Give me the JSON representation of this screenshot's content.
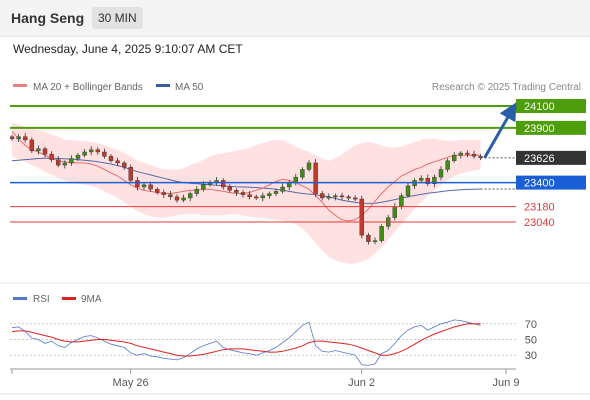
{
  "header": {
    "title": "Hang Seng",
    "interval": "30 MIN"
  },
  "timestamp": "Wednesday, June 4, 2025 9:10:07 AM CET",
  "copyright": "Research © 2025 Trading Central",
  "colors": {
    "resistance": "#4d9e0a",
    "current": "#333333",
    "pivot": "#1a5fd6",
    "support": "#e23b3b",
    "bollinger": "#ffd9d9",
    "ma20": "#e66d6d",
    "ma50": "#5569a8",
    "candle_up": "#3f8c17",
    "candle_down": "#c0392b",
    "rsi": "#5577cc",
    "rsi_ma": "#dd2222",
    "arrow": "#2a5ea8"
  },
  "chart_data": {
    "type": "candlestick",
    "legend": [
      {
        "name": "MA 20 + Bollinger Bands",
        "color": "#f08080"
      },
      {
        "name": "MA 50",
        "color": "#3a5f9e"
      }
    ],
    "levels": [
      {
        "value": 24100,
        "label": "24100",
        "kind": "resistance"
      },
      {
        "value": 23900,
        "label": "23900",
        "kind": "resistance"
      },
      {
        "value": 23626,
        "label": "23626",
        "kind": "current"
      },
      {
        "value": 23400,
        "label": "23400",
        "kind": "pivot"
      },
      {
        "value": 23180,
        "label": "23180",
        "kind": "support"
      },
      {
        "value": 23040,
        "label": "23040",
        "kind": "support"
      }
    ],
    "close": [
      23800,
      23820,
      23790,
      23690,
      23710,
      23660,
      23610,
      23560,
      23580,
      23620,
      23650,
      23680,
      23700,
      23680,
      23640,
      23600,
      23580,
      23540,
      23420,
      23360,
      23380,
      23340,
      23310,
      23290,
      23270,
      23240,
      23260,
      23300,
      23340,
      23380,
      23400,
      23420,
      23360,
      23330,
      23310,
      23290,
      23270,
      23260,
      23280,
      23300,
      23320,
      23360,
      23400,
      23450,
      23520,
      23580,
      23300,
      23260,
      23270,
      23280,
      23270,
      23260,
      23250,
      22920,
      22860,
      22870,
      23000,
      23080,
      23180,
      23280,
      23370,
      23420,
      23440,
      23390,
      23450,
      23520,
      23600,
      23650,
      23670,
      23660,
      23640,
      23626
    ],
    "ma20": [
      23870,
      23800,
      23740,
      23700,
      23680,
      23650,
      23620,
      23600,
      23590,
      23580,
      23580,
      23580,
      23570,
      23550,
      23520,
      23490,
      23460,
      23420,
      23380,
      23350,
      23330,
      23320,
      23310,
      23300,
      23300,
      23310,
      23320,
      23330,
      23330,
      23340,
      23340,
      23330,
      23320,
      23310,
      23300,
      23300,
      23310,
      23330,
      23350,
      23380,
      23410,
      23430,
      23420,
      23400,
      23370,
      23340,
      23280,
      23220,
      23150,
      23100,
      23060,
      23050,
      23060,
      23100,
      23160,
      23230,
      23300,
      23360,
      23410,
      23460,
      23490,
      23520,
      23540,
      23570,
      23590,
      23610,
      23630,
      23650,
      23650,
      23650,
      23650,
      23650
    ],
    "bb_upper": [
      23950,
      23930,
      23910,
      23900,
      23880,
      23860,
      23840,
      23820,
      23790,
      23790,
      23780,
      23780,
      23770,
      23760,
      23740,
      23720,
      23700,
      23670,
      23640,
      23600,
      23580,
      23560,
      23540,
      23520,
      23520,
      23520,
      23530,
      23560,
      23580,
      23610,
      23640,
      23660,
      23670,
      23680,
      23690,
      23700,
      23720,
      23740,
      23760,
      23780,
      23790,
      23790,
      23760,
      23730,
      23700,
      23680,
      23650,
      23620,
      23600,
      23620,
      23660,
      23700,
      23740,
      23760,
      23770,
      23760,
      23740,
      23720,
      23720,
      23730,
      23750,
      23770,
      23790,
      23800,
      23800,
      23790,
      23780,
      23780,
      23790,
      23790,
      23790,
      23790
    ],
    "bb_lower": [
      23640,
      23610,
      23590,
      23560,
      23530,
      23500,
      23470,
      23440,
      23420,
      23400,
      23390,
      23380,
      23370,
      23350,
      23320,
      23290,
      23260,
      23220,
      23180,
      23140,
      23110,
      23090,
      23080,
      23080,
      23090,
      23100,
      23110,
      23110,
      23110,
      23100,
      23100,
      23100,
      23100,
      23110,
      23110,
      23100,
      23090,
      23080,
      23080,
      23070,
      23060,
      23050,
      23040,
      23020,
      22980,
      22920,
      22850,
      22780,
      22720,
      22690,
      22670,
      22660,
      22660,
      22680,
      22700,
      22750,
      22810,
      22880,
      22950,
      23020,
      23090,
      23160,
      23220,
      23280,
      23330,
      23380,
      23420,
      23460,
      23480,
      23500,
      23510,
      23520
    ],
    "ma50": [
      23600,
      23605,
      23610,
      23615,
      23620,
      23622,
      23622,
      23620,
      23618,
      23615,
      23610,
      23605,
      23598,
      23590,
      23580,
      23570,
      23555,
      23540,
      23520,
      23500,
      23485,
      23470,
      23455,
      23440,
      23425,
      23410,
      23400,
      23395,
      23390,
      23385,
      23380,
      23375,
      23370,
      23365,
      23362,
      23360,
      23358,
      23355,
      23350,
      23345,
      23340,
      23330,
      23320,
      23310,
      23300,
      23295,
      23290,
      23280,
      23270,
      23255,
      23240,
      23228,
      23220,
      23212,
      23210,
      23212,
      23220,
      23232,
      23245,
      23258,
      23270,
      23282,
      23292,
      23302,
      23310,
      23318,
      23325,
      23330,
      23335,
      23338,
      23340,
      23342
    ],
    "projection": {
      "from": 23626,
      "to": 24100
    },
    "x_ticks": [
      {
        "label": "May 26",
        "index": 21
      },
      {
        "label": "Jun 2",
        "index": 56
      },
      {
        "label": "Jun 9",
        "index": 80
      }
    ],
    "rsi": {
      "legend": [
        {
          "name": "RSI",
          "color": "#5577cc"
        },
        {
          "name": "9MA",
          "color": "#dd2222"
        }
      ],
      "ticks": [
        70,
        50,
        30
      ],
      "ylim": [
        15,
        85
      ],
      "values": [
        65,
        66,
        60,
        52,
        50,
        45,
        48,
        42,
        40,
        46,
        50,
        54,
        55,
        52,
        48,
        44,
        42,
        40,
        33,
        30,
        32,
        29,
        28,
        26,
        25,
        24,
        27,
        32,
        38,
        42,
        45,
        48,
        40,
        37,
        35,
        33,
        32,
        30,
        33,
        36,
        40,
        46,
        52,
        60,
        68,
        72,
        42,
        35,
        34,
        36,
        34,
        32,
        30,
        18,
        17,
        19,
        32,
        36,
        45,
        55,
        62,
        66,
        68,
        62,
        66,
        70,
        72,
        75,
        74,
        72,
        70,
        68
      ],
      "ma": [
        60,
        61,
        61,
        59,
        57,
        55,
        53,
        50,
        48,
        47,
        47,
        48,
        49,
        50,
        50,
        49,
        48,
        47,
        45,
        42,
        40,
        38,
        36,
        34,
        32,
        30,
        29,
        29,
        30,
        31,
        33,
        35,
        37,
        38,
        38,
        38,
        37,
        36,
        35,
        34,
        34,
        35,
        37,
        39,
        42,
        46,
        48,
        48,
        47,
        46,
        45,
        44,
        42,
        39,
        36,
        33,
        30,
        30,
        32,
        35,
        39,
        44,
        49,
        53,
        57,
        60,
        63,
        66,
        68,
        70,
        70,
        70
      ]
    }
  }
}
